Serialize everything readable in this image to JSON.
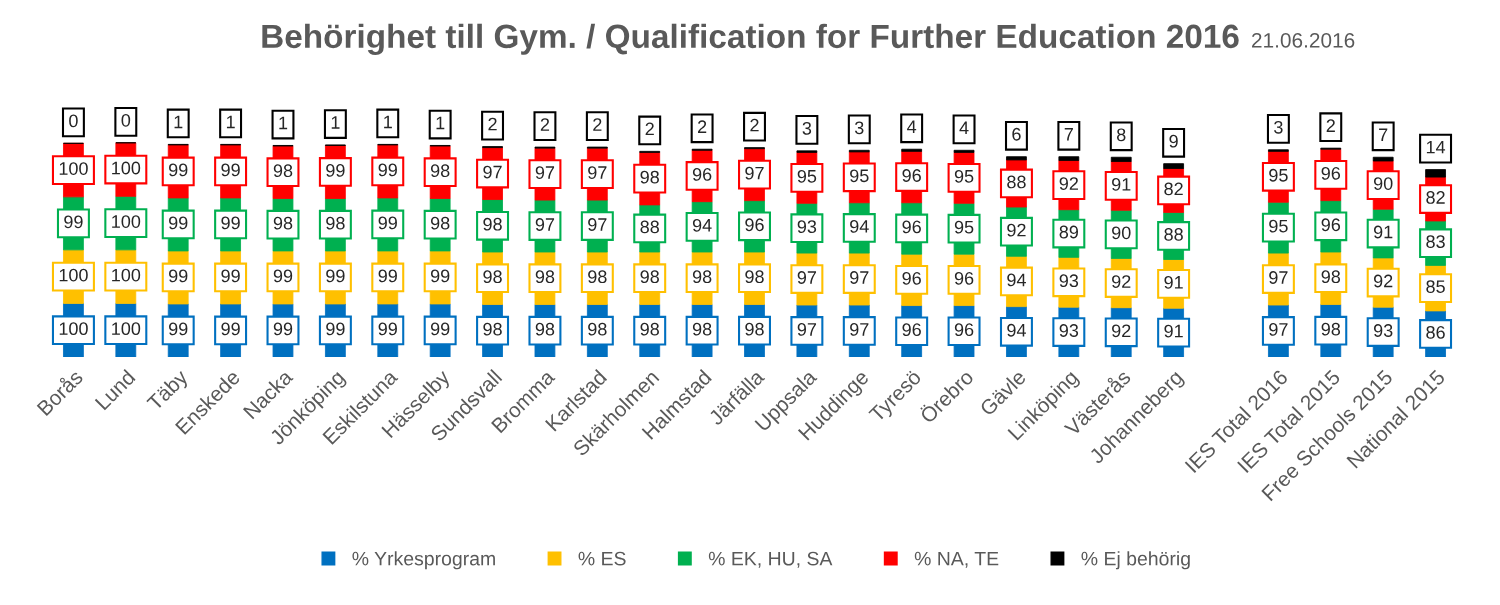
{
  "chart_data": {
    "type": "bar",
    "stacked": true,
    "title": "Behörighet till Gym. / Qualification for Further Education 2016",
    "subtitle": "21.06.2016",
    "categories": [
      "Borås",
      "Lund",
      "Täby",
      "Enskede",
      "Nacka",
      "Jönköping",
      "Eskilstuna",
      "Hässelby",
      "Sundsvall",
      "Bromma",
      "Karlstad",
      "Skärholmen",
      "Halmstad",
      "Järfälla",
      "Uppsala",
      "Huddinge",
      "Tyresö",
      "Örebro",
      "Gävle",
      "Linköping",
      "Västerås",
      "Johanneberg",
      null,
      "IES Total 2016",
      "IES Total 2015",
      "Free Schools 2015",
      "National 2015"
    ],
    "series": [
      {
        "name": "% Yrkesprogram",
        "color": "#0070c0",
        "values": [
          100,
          100,
          99,
          99,
          99,
          99,
          99,
          99,
          98,
          98,
          98,
          98,
          98,
          98,
          97,
          97,
          96,
          96,
          94,
          93,
          92,
          91,
          null,
          97,
          98,
          93,
          86
        ]
      },
      {
        "name": "% ES",
        "color": "#ffc000",
        "values": [
          100,
          100,
          99,
          99,
          99,
          99,
          99,
          99,
          98,
          98,
          98,
          98,
          98,
          98,
          97,
          97,
          96,
          96,
          94,
          93,
          92,
          91,
          null,
          97,
          98,
          92,
          85
        ]
      },
      {
        "name": "% EK, HU, SA",
        "color": "#00b050",
        "values": [
          99,
          100,
          99,
          99,
          98,
          98,
          99,
          98,
          98,
          97,
          97,
          88,
          94,
          96,
          93,
          94,
          96,
          95,
          92,
          89,
          90,
          88,
          null,
          95,
          96,
          91,
          83
        ]
      },
      {
        "name": "% NA, TE",
        "color": "#ff0000",
        "values": [
          100,
          100,
          99,
          99,
          98,
          99,
          99,
          98,
          97,
          97,
          97,
          98,
          96,
          97,
          95,
          95,
          96,
          95,
          88,
          92,
          91,
          82,
          null,
          95,
          96,
          90,
          82
        ]
      },
      {
        "name": "% Ej behörig",
        "color": "#000000",
        "values": [
          0,
          0,
          1,
          1,
          1,
          1,
          1,
          1,
          2,
          2,
          2,
          2,
          2,
          2,
          3,
          3,
          4,
          4,
          6,
          7,
          8,
          9,
          null,
          3,
          2,
          7,
          14
        ]
      }
    ],
    "data_labels": true,
    "legend": "bottom",
    "grid": false,
    "marker": "square"
  }
}
